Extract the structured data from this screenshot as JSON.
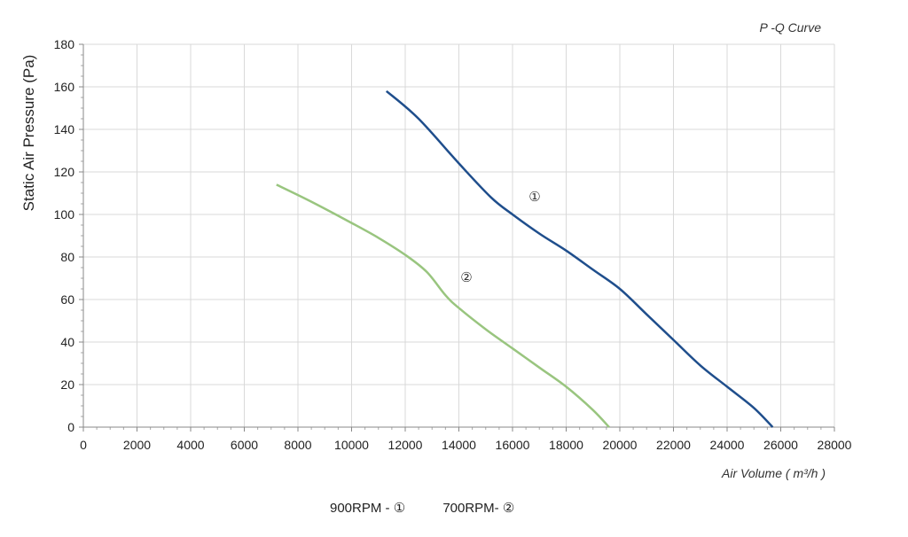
{
  "chart_data": {
    "type": "line",
    "title": "P -Q Curve",
    "xlabel": "Air Volume ( m³/h )",
    "ylabel": "Static Air Pressure  (Pa)",
    "xlim": [
      0,
      28000
    ],
    "ylim": [
      0,
      180
    ],
    "x_ticks": [
      0,
      2000,
      4000,
      6000,
      8000,
      10000,
      12000,
      14000,
      16000,
      18000,
      20000,
      22000,
      24000,
      26000,
      28000
    ],
    "y_ticks": [
      0,
      20,
      40,
      60,
      80,
      100,
      120,
      140,
      160,
      180
    ],
    "grid": true,
    "series": [
      {
        "name": "①",
        "color": "#1f4e8c",
        "points": [
          [
            11300,
            158
          ],
          [
            12500,
            145
          ],
          [
            14000,
            124
          ],
          [
            15200,
            108
          ],
          [
            16000,
            100
          ],
          [
            17000,
            91
          ],
          [
            18000,
            83
          ],
          [
            19000,
            74
          ],
          [
            20000,
            65
          ],
          [
            21000,
            53
          ],
          [
            22000,
            41
          ],
          [
            23000,
            29
          ],
          [
            24000,
            19
          ],
          [
            25000,
            9
          ],
          [
            25700,
            0
          ]
        ]
      },
      {
        "name": "②",
        "color": "#99c57f",
        "points": [
          [
            7200,
            114
          ],
          [
            8500,
            106
          ],
          [
            10000,
            96
          ],
          [
            11000,
            89
          ],
          [
            12000,
            81
          ],
          [
            12800,
            73
          ],
          [
            13500,
            62
          ],
          [
            14000,
            56
          ],
          [
            15000,
            46
          ],
          [
            16000,
            37
          ],
          [
            17000,
            28
          ],
          [
            18000,
            19
          ],
          [
            19000,
            8
          ],
          [
            19600,
            0
          ]
        ]
      }
    ]
  },
  "legend_text": {
    "rpm900": "900RPM -  ①",
    "rpm700": "700RPM-  ②"
  }
}
